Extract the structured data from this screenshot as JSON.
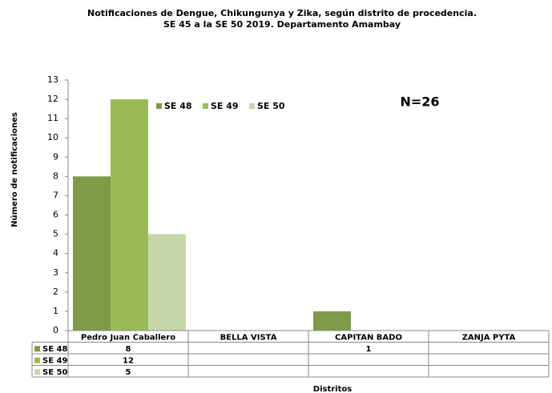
{
  "chart_data": {
    "type": "bar",
    "title": "Notificaciones de Dengue, Chikungunya y Zika, según distrito de procedencia.",
    "subtitle": "SE 45 a la SE 50 2019. Departamento Amambay",
    "annotation": "N=26",
    "x_label": "Distritos",
    "y_label": "Número de notificaciones",
    "categories": [
      "Pedro Juan Caballero",
      "BELLA VISTA",
      "CAPITAN BADO",
      "ZANJA PYTA"
    ],
    "series": [
      {
        "name": "SE 48",
        "color": "#7f9a48",
        "values": [
          8,
          null,
          1,
          null
        ]
      },
      {
        "name": "SE 49",
        "color": "#9bbb59",
        "values": [
          12,
          null,
          null,
          null
        ]
      },
      {
        "name": "SE 50",
        "color": "#c7d7a9",
        "values": [
          5,
          null,
          null,
          null
        ]
      }
    ],
    "ylim": [
      0,
      13
    ],
    "yticks": [
      0,
      1,
      2,
      3,
      4,
      5,
      6,
      7,
      8,
      9,
      10,
      11,
      12,
      13
    ],
    "grid": false,
    "legend": "top",
    "data_table": true
  }
}
